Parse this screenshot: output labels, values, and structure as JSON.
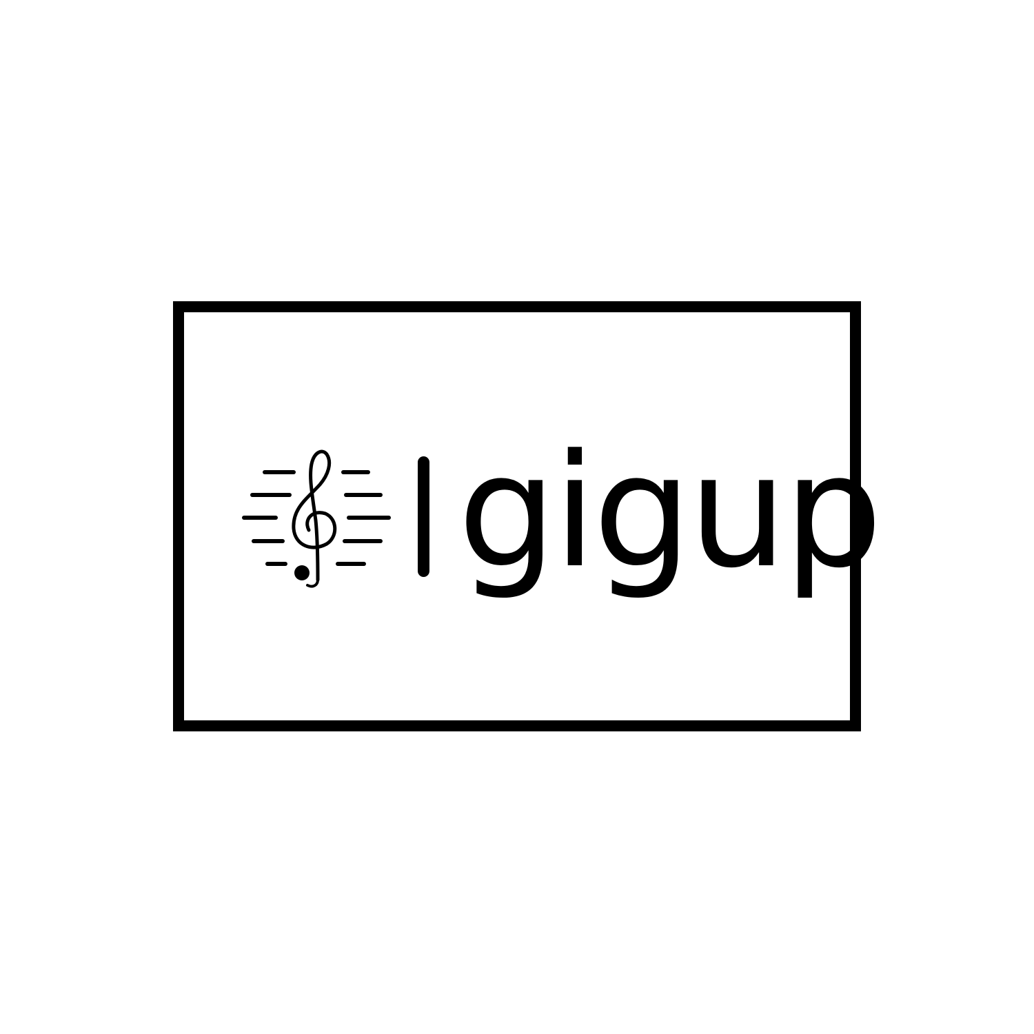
{
  "logo": {
    "icon": "treble-clef-staff-icon",
    "wordmark": "gigup"
  },
  "colors": {
    "background": "#ffffff",
    "ink": "#000000"
  }
}
